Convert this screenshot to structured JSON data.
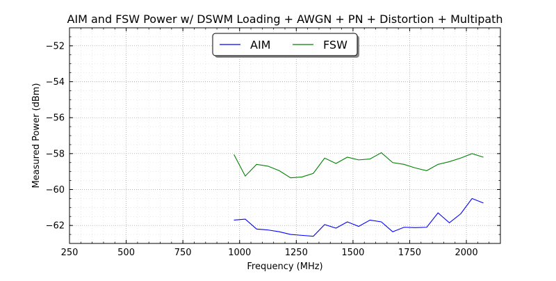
{
  "chart_data": {
    "type": "line",
    "title": "AIM and FSW Power w/ DSWM Loading + AWGN + PN + Distortion + Multipath",
    "xlabel": "Frequency (MHz)",
    "ylabel": "Measured Power (dBm)",
    "xlim": [
      250,
      2150
    ],
    "ylim": [
      -63,
      -51
    ],
    "xticks": [
      250,
      500,
      750,
      1000,
      1250,
      1500,
      1750,
      2000
    ],
    "yticks": [
      -62,
      -60,
      -58,
      -56,
      -54,
      -52
    ],
    "xtick_labels": [
      "250",
      "500",
      "750",
      "1000",
      "1250",
      "1500",
      "1750",
      "2000"
    ],
    "ytick_labels": [
      "−62",
      "−60",
      "−58",
      "−56",
      "−54",
      "−52"
    ],
    "grid": true,
    "legend": "top-center",
    "x": [
      975,
      1025,
      1075,
      1125,
      1175,
      1225,
      1275,
      1325,
      1375,
      1425,
      1475,
      1525,
      1575,
      1625,
      1675,
      1725,
      1775,
      1825,
      1875,
      1925,
      1975,
      2025,
      2075
    ],
    "series": [
      {
        "name": "AIM",
        "color": "#0000ff",
        "values": [
          -61.7,
          -61.65,
          -62.2,
          -62.25,
          -62.35,
          -62.5,
          -62.55,
          -62.6,
          -61.95,
          -62.15,
          -61.8,
          -62.05,
          -61.7,
          -61.8,
          -62.35,
          -62.1,
          -62.12,
          -62.1,
          -61.3,
          -61.85,
          -61.35,
          -60.5,
          -60.75
        ]
      },
      {
        "name": "FSW",
        "color": "#008000",
        "values": [
          -58.05,
          -59.25,
          -58.6,
          -58.7,
          -58.95,
          -59.35,
          -59.3,
          -59.1,
          -58.25,
          -58.55,
          -58.2,
          -58.35,
          -58.3,
          -57.95,
          -58.5,
          -58.6,
          -58.8,
          -58.95,
          -58.6,
          -58.45,
          -58.25,
          -58.0,
          -58.2
        ]
      }
    ]
  }
}
